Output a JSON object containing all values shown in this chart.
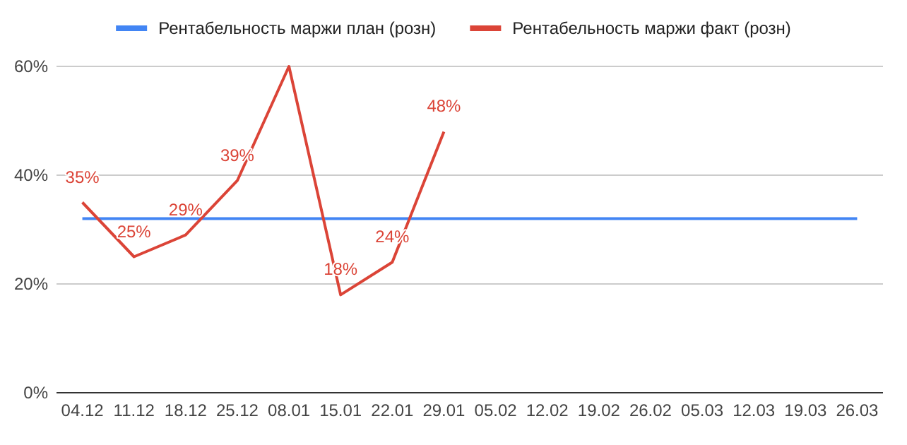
{
  "chart_data": {
    "type": "line",
    "categories": [
      "04.12",
      "11.12",
      "18.12",
      "25.12",
      "08.01",
      "15.01",
      "22.01",
      "29.01",
      "05.02",
      "12.02",
      "19.02",
      "26.02",
      "05.03",
      "12.03",
      "19.03",
      "26.03"
    ],
    "series": [
      {
        "name": "Рентабельность маржи план (розн)",
        "color": "#4285f4",
        "values": [
          32,
          32,
          32,
          32,
          32,
          32,
          32,
          32,
          32,
          32,
          32,
          32,
          32,
          32,
          32,
          32
        ]
      },
      {
        "name": "Рентабельность маржи факт (розн)",
        "color": "#db4437",
        "values": [
          35,
          25,
          29,
          39,
          60,
          18,
          24,
          48,
          null,
          null,
          null,
          null,
          null,
          null,
          null,
          null
        ],
        "value_labels": [
          "35%",
          "25%",
          "29%",
          "39%",
          null,
          "18%",
          "24%",
          "48%",
          null,
          null,
          null,
          null,
          null,
          null,
          null,
          null
        ]
      }
    ],
    "ylim": [
      0,
      60
    ],
    "yticks": [
      {
        "value": 0,
        "label": "0%"
      },
      {
        "value": 20,
        "label": "20%"
      },
      {
        "value": 40,
        "label": "40%"
      },
      {
        "value": 60,
        "label": "60%"
      }
    ],
    "grid": "y",
    "legend": "top",
    "marker": "none",
    "line_style": "solid"
  }
}
